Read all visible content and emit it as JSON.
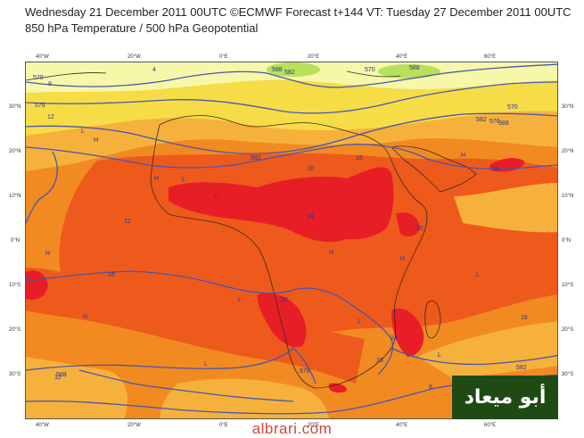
{
  "header": {
    "line1": "Wednesday 21 December 2011 00UTC ©ECMWF Forecast t+144 VT: Tuesday 27 December 2011 00UTC",
    "line2": "850 hPa Temperature / 500 hPa Geopotential"
  },
  "axes": {
    "top_lon": [
      "40°W",
      "20°W",
      "0°E",
      "20°E",
      "40°E",
      "60°E"
    ],
    "bottom_lon": [
      "40°W",
      "20°W",
      "0°E",
      "20°E",
      "40°E",
      "60°E"
    ],
    "left_lat": [
      "30°N",
      "20°N",
      "10°N",
      "0°N",
      "10°S",
      "20°S",
      "30°S"
    ],
    "right_lat": [
      "30°N",
      "20°N",
      "10°N",
      "0°N",
      "10°S",
      "20°S",
      "30°S"
    ]
  },
  "contour_labels": [
    "570",
    "576",
    "582",
    "588",
    "570",
    "576",
    "582",
    "588",
    "582",
    "588",
    "576",
    "582",
    "570",
    "588"
  ],
  "temp_labels": [
    "8",
    "4",
    "12",
    "16",
    "20",
    "24",
    "20",
    "20",
    "24",
    "16",
    "12",
    "16",
    "20",
    "16",
    "12",
    "8"
  ],
  "pressure_marks": [
    "H",
    "H",
    "H",
    "H",
    "H",
    "L",
    "L",
    "L",
    "L",
    "L",
    "L",
    "H",
    "H",
    "L",
    "L"
  ],
  "colors": {
    "pale_yellow": "#f6f7a8",
    "yellow": "#f6dc46",
    "light_orange": "#f6b13c",
    "orange": "#f28a22",
    "dark_orange": "#ee5a1c",
    "red": "#e81e26",
    "contour": "#4a55b0",
    "coast": "#3a2a20",
    "logo_bg": "#1f4a14",
    "site_text": "#c84a3a"
  },
  "logo": {
    "text": "أبو ميعاد"
  },
  "site": {
    "text": "albrari.com"
  }
}
